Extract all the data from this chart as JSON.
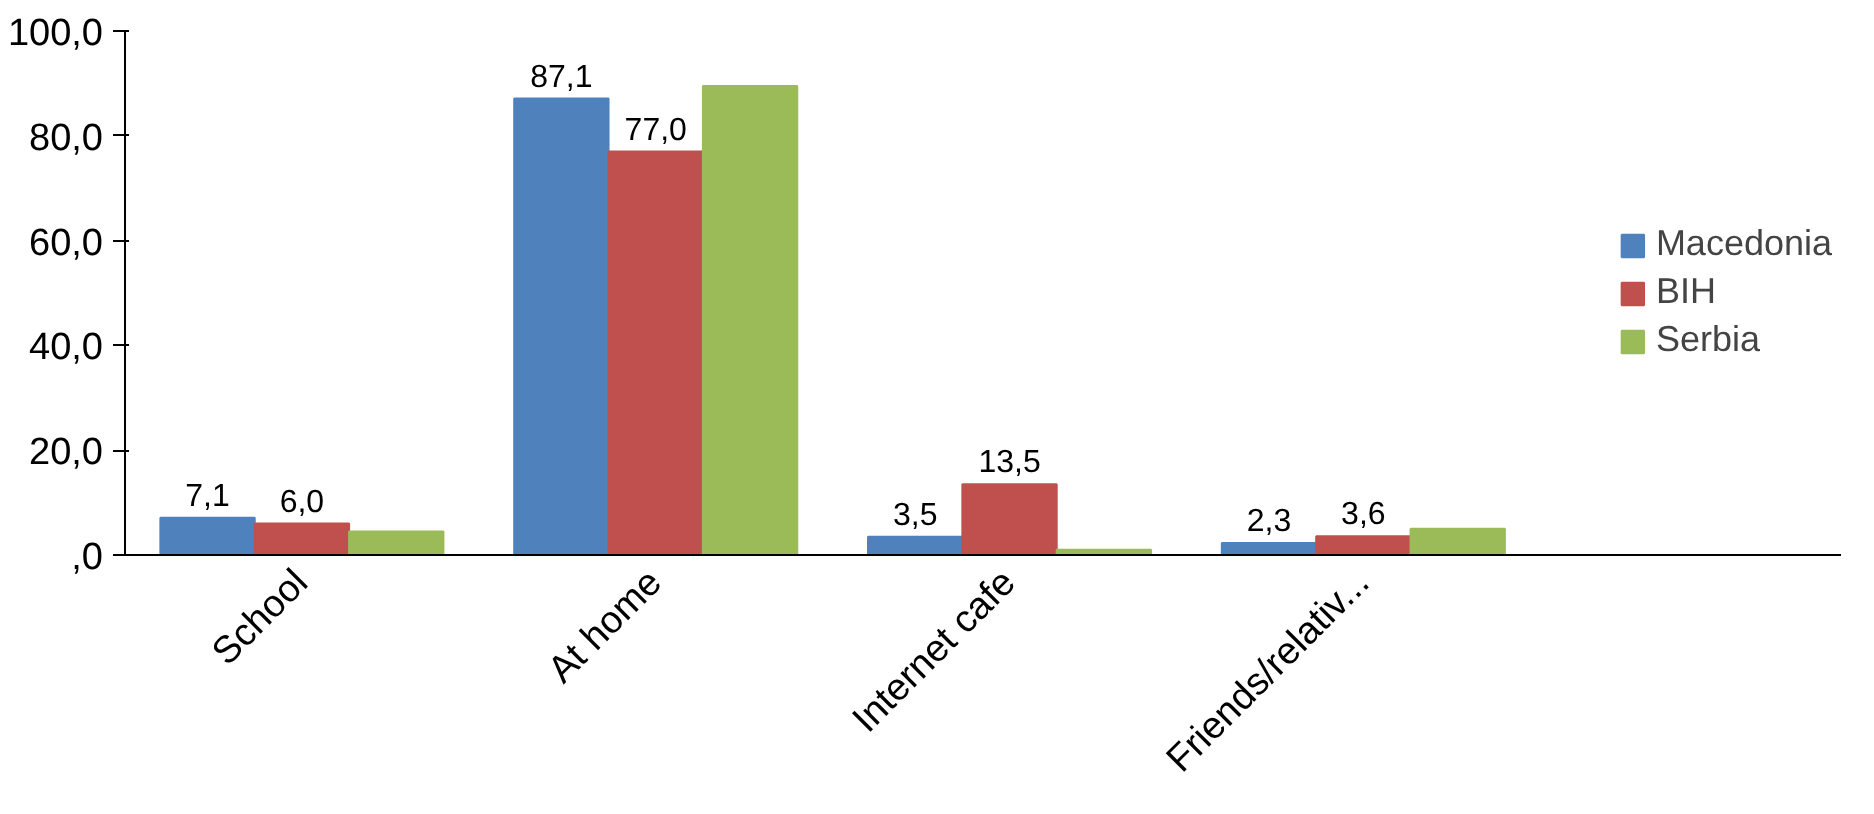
{
  "chart_data": {
    "type": "bar",
    "categories": [
      "School",
      "At home",
      "Internet cafe",
      "Friends/relativ..."
    ],
    "series": [
      {
        "name": "Macedonia",
        "color": "#4f81bd",
        "values": [
          7.1,
          87.1,
          3.5,
          2.3
        ],
        "value_labels": [
          "7,1",
          "87,1",
          "3,5",
          "2,3"
        ]
      },
      {
        "name": "BIH",
        "color": "#c0504d",
        "values": [
          6.0,
          77.0,
          13.5,
          3.6
        ],
        "value_labels": [
          "6,0",
          "77,0",
          "13,5",
          "3,6"
        ]
      },
      {
        "name": "Serbia",
        "color": "#9bbb59",
        "values": [
          4.5,
          89.5,
          1.0,
          5.0
        ]
      }
    ],
    "ylim": [
      0,
      100
    ],
    "yticks": [
      {
        "value": 0,
        "label": ",0"
      },
      {
        "value": 20,
        "label": "20,0"
      },
      {
        "value": 40,
        "label": "40,0"
      },
      {
        "value": 60,
        "label": "60,0"
      },
      {
        "value": 80,
        "label": "80,0"
      },
      {
        "value": 100,
        "label": "100,0"
      }
    ],
    "grid": false,
    "legend": "right"
  }
}
